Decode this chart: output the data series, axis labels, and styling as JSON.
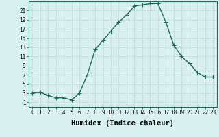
{
  "x": [
    0,
    1,
    2,
    3,
    4,
    5,
    6,
    7,
    8,
    9,
    10,
    11,
    12,
    13,
    14,
    15,
    16,
    17,
    18,
    19,
    20,
    21,
    22,
    23
  ],
  "y": [
    3,
    3.2,
    2.5,
    2,
    2,
    1.5,
    3,
    7,
    12.5,
    14.5,
    16.5,
    18.5,
    20,
    22,
    22.2,
    22.5,
    22.5,
    18.5,
    13.5,
    11,
    9.5,
    7.5,
    6.5,
    6.5
  ],
  "line_color": "#1a6b5a",
  "marker": "+",
  "marker_size": 4,
  "bg_color": "#d9f0f0",
  "grid_color": "#c0d8d8",
  "xlabel": "Humidex (Indice chaleur)",
  "xlim": [
    -0.5,
    23.5
  ],
  "ylim": [
    0,
    23
  ],
  "yticks": [
    1,
    3,
    5,
    7,
    9,
    11,
    13,
    15,
    17,
    19,
    21
  ],
  "xtick_labels": [
    "0",
    "1",
    "2",
    "3",
    "4",
    "5",
    "6",
    "7",
    "8",
    "9",
    "10",
    "11",
    "12",
    "13",
    "14",
    "15",
    "16",
    "17",
    "18",
    "19",
    "20",
    "21",
    "22",
    "23"
  ],
  "tick_fontsize": 5.5,
  "xlabel_fontsize": 7.5,
  "line_width": 1.0,
  "fig_width": 3.2,
  "fig_height": 2.0,
  "dpi": 100
}
